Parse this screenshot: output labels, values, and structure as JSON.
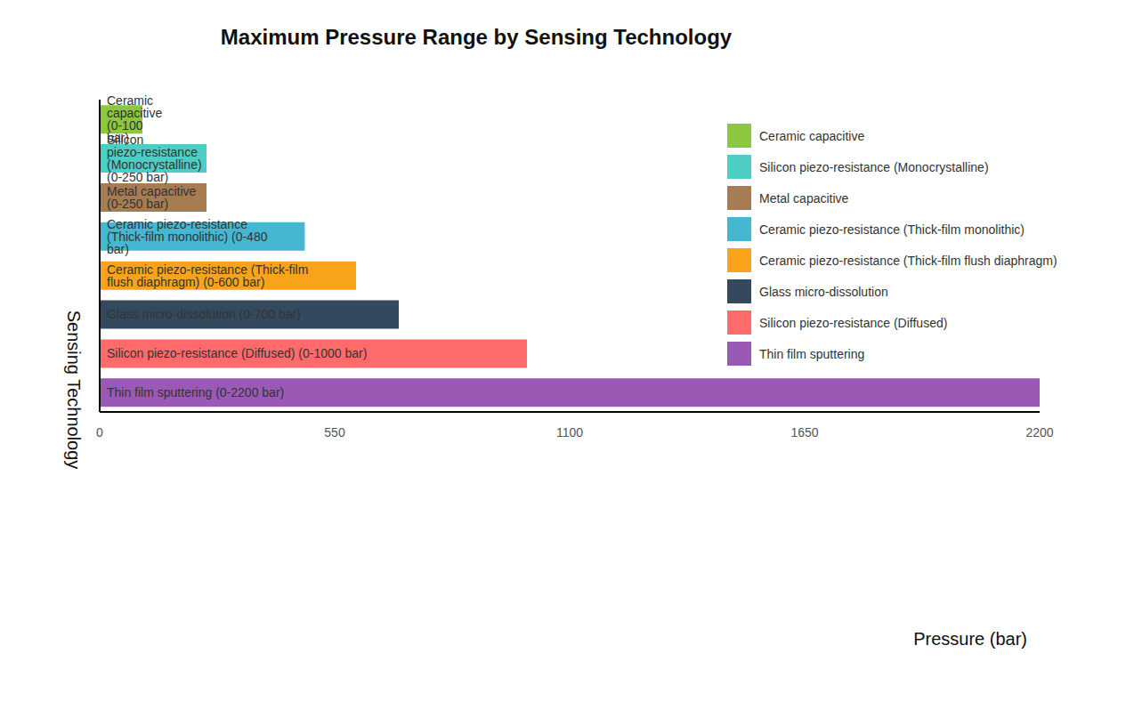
{
  "chart_data": {
    "type": "bar",
    "title": "Maximum Pressure Range by Sensing Technology",
    "x_label": "Pressure (bar)",
    "y_label": "Sensing Technology",
    "orientation": "horizontal",
    "categories": [
      "Ceramic capacitive",
      "Silicon piezo-resistance (Monocrystalline)",
      "Metal capacitive",
      "Ceramic piezo-resistance (Thick-film monolithic)",
      "Ceramic piezo-resistance (Thick-film flush diaphragm)",
      "Glass micro-dissolution",
      "Silicon piezo-resistance (Diffused)",
      "Thin film sputtering"
    ],
    "values": [
      100,
      250,
      250,
      480,
      600,
      700,
      1000,
      2200
    ],
    "value_labels": [
      "Ceramic capacitive (0-100 bar)",
      "Silicon piezo-resistance (Monocrystalline) (0-250 bar)",
      "Metal capacitive (0-250 bar)",
      "Ceramic piezo-resistance (Thick-film monolithic) (0-480 bar)",
      "Ceramic piezo-resistance (Thick-film flush diaphragm) (0-600 bar)",
      "Glass micro-dissolution (0-700 bar)",
      "Silicon piezo-resistance (Diffused) (0-1000 bar)",
      "Thin film sputtering (0-2200 bar)"
    ],
    "colors": [
      "#8dc63f",
      "#4ecdc4",
      "#a67c52",
      "#45b7d1",
      "#f9a31a",
      "#34495e",
      "#ff6b6b",
      "#9b59b6"
    ],
    "xlim": [
      0,
      2200
    ],
    "xticks": [
      0,
      550,
      1100,
      1650,
      2200
    ],
    "data_labels": true,
    "tick_labels": "x",
    "legend": "upper right",
    "grid": false
  }
}
